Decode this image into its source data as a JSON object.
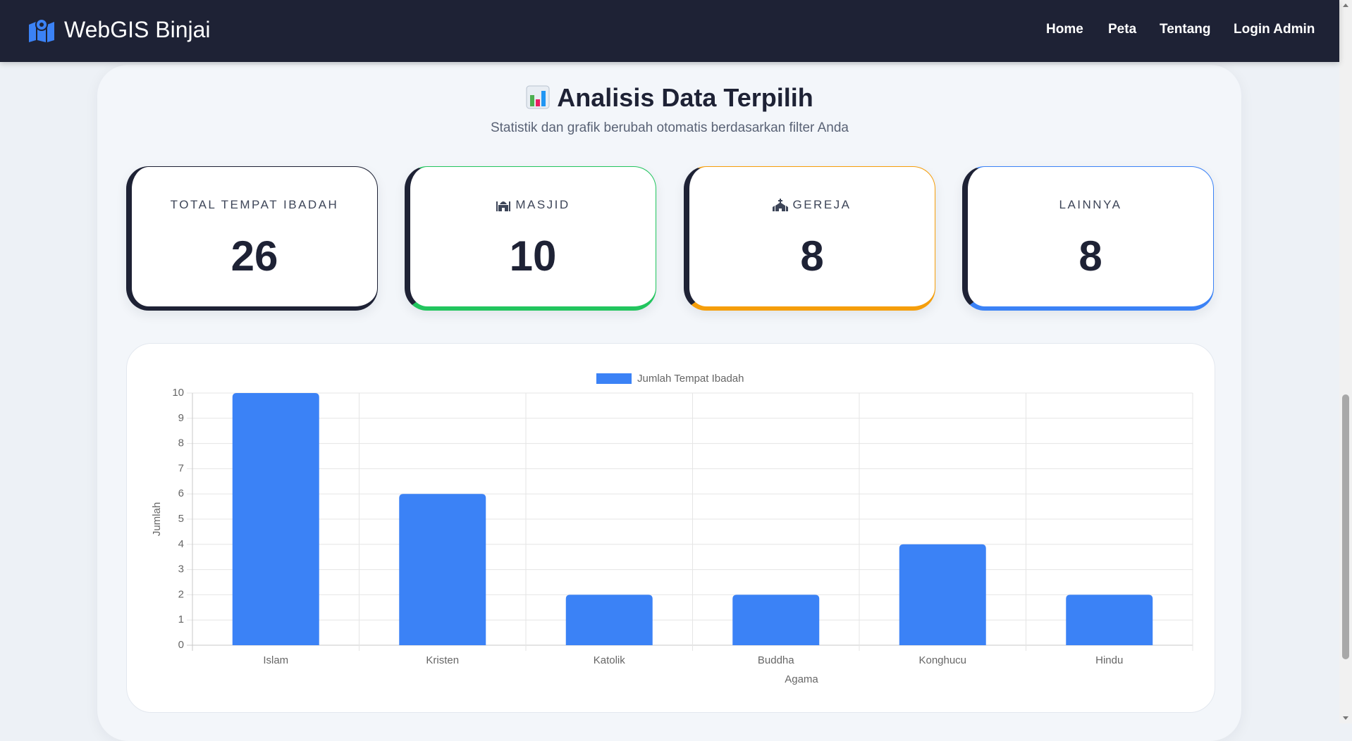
{
  "navbar": {
    "brand": "WebGIS Binjai",
    "links": [
      "Home",
      "Peta",
      "Tentang",
      "Login Admin"
    ]
  },
  "section": {
    "title": "Analisis Data Terpilih",
    "subtitle": "Statistik dan grafik berubah otomatis berdasarkan filter Anda"
  },
  "cards": [
    {
      "label": "TOTAL TEMPAT IBADAH",
      "value": "26",
      "color": "#1e2235"
    },
    {
      "label": "MASJID",
      "value": "10",
      "color": "#22c55e"
    },
    {
      "label": "GEREJA",
      "value": "8",
      "color": "#f59e0b"
    },
    {
      "label": "LAINNYA",
      "value": "8",
      "color": "#3b82f6"
    }
  ],
  "chart_data": {
    "type": "bar",
    "categories": [
      "Islam",
      "Kristen",
      "Katolik",
      "Buddha",
      "Konghucu",
      "Hindu"
    ],
    "series": [
      {
        "name": "Jumlah Tempat Ibadah",
        "color": "#3b82f6",
        "values": [
          10,
          6,
          2,
          2,
          4,
          2
        ]
      }
    ],
    "x_label": "Agama",
    "y_label": "Jumlah",
    "ylim": [
      0,
      10
    ],
    "yticks": [
      0,
      1,
      2,
      3,
      4,
      5,
      6,
      7,
      8,
      9,
      10
    ],
    "grid": true,
    "legend": "top"
  }
}
